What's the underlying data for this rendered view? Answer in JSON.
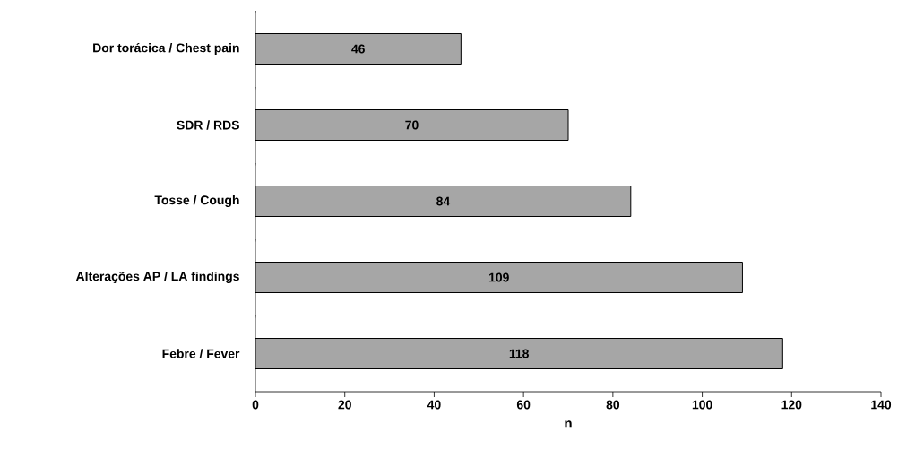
{
  "chart_data": {
    "type": "bar",
    "orientation": "horizontal",
    "xlabel": "n",
    "categories": [
      "Dor torácica / Chest pain",
      "SDR / RDS",
      "Tosse / Cough",
      "Alterações AP / LA findings",
      "Febre / Fever"
    ],
    "values": [
      46,
      70,
      84,
      109,
      118
    ],
    "color": "#a6a6a6",
    "data_labels": true,
    "xlim": [
      0,
      140
    ],
    "xticks": [
      0,
      20,
      40,
      60,
      80,
      100,
      120,
      140
    ],
    "grid": false
  }
}
